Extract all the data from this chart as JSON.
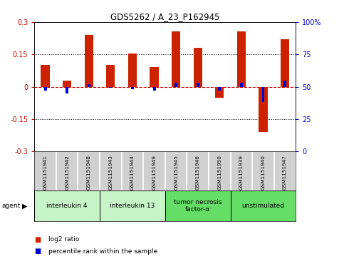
{
  "title": "GDS5262 / A_23_P162945",
  "samples": [
    "GSM1151941",
    "GSM1151942",
    "GSM1151948",
    "GSM1151943",
    "GSM1151944",
    "GSM1151949",
    "GSM1151945",
    "GSM1151946",
    "GSM1151950",
    "GSM1151939",
    "GSM1151940",
    "GSM1151947"
  ],
  "log2_ratio": [
    0.1,
    0.03,
    0.24,
    0.1,
    0.155,
    0.09,
    0.255,
    0.18,
    -0.05,
    0.255,
    -0.21,
    0.22
  ],
  "percentile_rank": [
    47,
    45,
    52,
    49,
    48,
    47,
    53,
    53,
    47,
    53,
    38,
    55
  ],
  "ylim": [
    -0.3,
    0.3
  ],
  "yticks_left": [
    -0.3,
    -0.15,
    0,
    0.15,
    0.3
  ],
  "yticks_right": [
    0,
    25,
    50,
    75,
    100
  ],
  "dotted_lines": [
    0.15,
    -0.15
  ],
  "agents": [
    {
      "label": "interleukin 4",
      "start": 0,
      "end": 3,
      "color": "#c8f5c8"
    },
    {
      "label": "interleukin 13",
      "start": 3,
      "end": 6,
      "color": "#c8f5c8"
    },
    {
      "label": "tumor necrosis\nfactor-α",
      "start": 6,
      "end": 9,
      "color": "#66dd66"
    },
    {
      "label": "unstimulated",
      "start": 9,
      "end": 12,
      "color": "#66dd66"
    }
  ],
  "bar_color_red": "#cc2200",
  "bar_color_blue": "#0000cc",
  "bar_width": 0.4,
  "blue_bar_width": 0.13,
  "bg_color": "#ffffff",
  "plot_bg": "#ffffff",
  "label_color_left": "#cc0000",
  "label_color_right": "#0000cc",
  "zero_line_color": "#cc0000",
  "sample_box_color": "#d0d0d0",
  "legend_items": [
    {
      "label": "log2 ratio",
      "color": "#cc2200"
    },
    {
      "label": "percentile rank within the sample",
      "color": "#0000cc"
    }
  ]
}
